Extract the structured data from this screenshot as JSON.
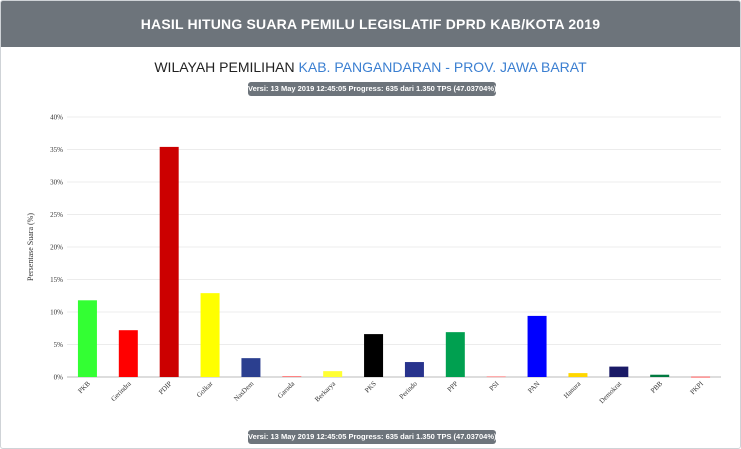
{
  "header": {
    "title": "HASIL HITUNG SUARA PEMILU LEGISLATIF DPRD KAB/KOTA 2019"
  },
  "region": {
    "prefix": "WILAYAH PEMILIHAN",
    "link": "KAB. PANGANDARAN - PROV. JAWA BARAT"
  },
  "version_badge": "Versi: 13 May 2019 12:45:05 Progress: 635 dari 1.350 TPS (47.03704%)",
  "chart_data": {
    "type": "bar",
    "ylabel": "Persentase Suara (%)",
    "xlabel": "",
    "ylim": [
      0,
      40
    ],
    "yticks": [
      "0%",
      "5%",
      "10%",
      "15%",
      "20%",
      "25%",
      "30%",
      "35%",
      "40%"
    ],
    "grid": true,
    "categories": [
      "PKB",
      "Gerindra",
      "PDIP",
      "Golkar",
      "NasDem",
      "Garuda",
      "Berkarya",
      "PKS",
      "Perindo",
      "PPP",
      "PSI",
      "PAN",
      "Hanura",
      "Demokrat",
      "PBB",
      "PKPI"
    ],
    "values": [
      11.8,
      7.2,
      35.4,
      12.9,
      2.9,
      0.15,
      0.9,
      6.6,
      2.3,
      6.9,
      0.1,
      9.4,
      0.6,
      1.6,
      0.35,
      0.05
    ],
    "colors": [
      "#33ff33",
      "#ff0000",
      "#cc0000",
      "#ffff00",
      "#2b3f8f",
      "#ff8080",
      "#ffff33",
      "#000000",
      "#28338d",
      "#00a050",
      "#ff8080",
      "#0000ff",
      "#ffd700",
      "#1a1a66",
      "#007a40",
      "#ff3333"
    ]
  }
}
